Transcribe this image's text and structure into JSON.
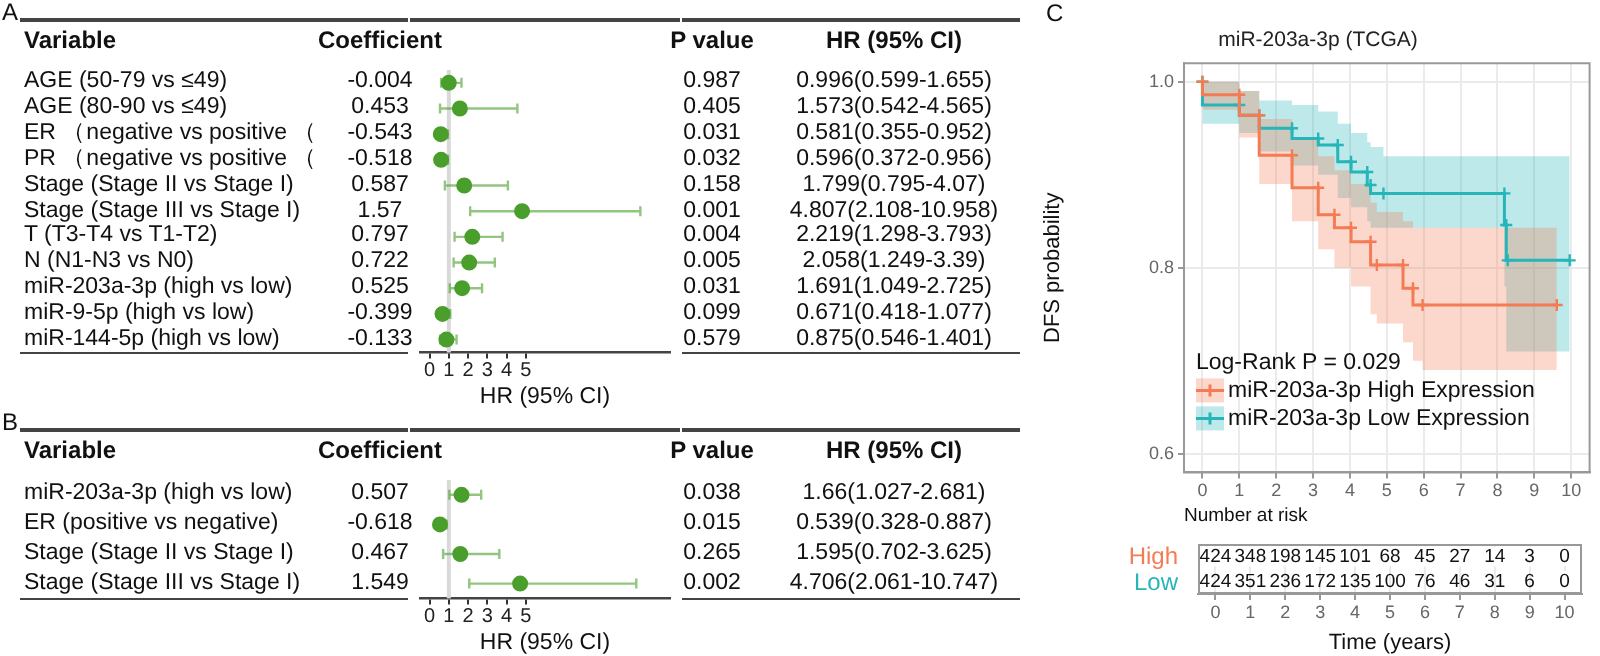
{
  "chart_data": [
    {
      "type": "scatter",
      "orientation": "horizontal",
      "title": "A",
      "xlabel": "HR (95% CI)",
      "marker": "circle",
      "categories": [
        "AGE (50-79 vs ≤49)",
        "AGE (80-90 vs ≤49)",
        "ER （negative vs positive （",
        "PR （negative vs positive （",
        "Stage (Stage II vs Stage I)",
        "Stage (Stage III vs Stage I)",
        "T (T3-T4 vs T1-T2)",
        "N (N1-N3 vs N0)",
        "miR-203a-3p (high vs low)",
        "miR-9-5p (high vs low)",
        "miR-144-5p (high vs low)"
      ],
      "series": [
        {
          "color": "#4a9e2c",
          "values": [
            0.996,
            1.573,
            0.581,
            0.596,
            1.799,
            4.807,
            2.219,
            2.058,
            1.691,
            0.671,
            0.875
          ],
          "errors": [
            [
              0.599,
              1.655
            ],
            [
              0.542,
              4.565
            ],
            [
              0.355,
              0.952
            ],
            [
              0.372,
              0.956
            ],
            [
              0.795,
              4.07
            ],
            [
              2.108,
              10.958
            ],
            [
              1.298,
              3.793
            ],
            [
              1.249,
              3.39
            ],
            [
              1.049,
              2.725
            ],
            [
              0.418,
              1.077
            ],
            [
              0.546,
              1.401
            ]
          ],
          "value_labels": [
            "0.996(0.599-1.655)",
            "1.573(0.542-4.565)",
            "0.581(0.355-0.952)",
            "0.596(0.372-0.956)",
            "1.799(0.795-4.07)",
            "4.807(2.108-10.958)",
            "2.219(1.298-3.793)",
            "2.058(1.249-3.39)",
            "1.691(1.049-2.725)",
            "0.671(0.418-1.077)",
            "0.875(0.546-1.401)"
          ]
        }
      ],
      "xlim": [
        -0.5,
        12.5
      ],
      "xticks": [
        0,
        1,
        2,
        3,
        4,
        5
      ],
      "ref_lines": [
        {
          "axis": "x",
          "value": 1,
          "color": "#d9d9d9"
        }
      ],
      "annotations": [
        "Variable",
        "Coefficient",
        "P value",
        "HR (95% CI)",
        "-0.004",
        "0.987",
        "0.453",
        "0.405",
        "-0.543",
        "0.031",
        "-0.518",
        "0.032",
        "0.587",
        "0.158",
        "1.57",
        "0.001",
        "0.797",
        "0.004",
        "0.722",
        "0.005",
        "0.525",
        "0.031",
        "-0.399",
        "0.099",
        "-0.133",
        "0.579"
      ]
    },
    {
      "type": "scatter",
      "orientation": "horizontal",
      "title": "B",
      "xlabel": "HR (95% CI)",
      "marker": "circle",
      "categories": [
        "miR-203a-3p (high vs low)",
        "ER (positive vs negative)",
        "Stage (Stage II vs Stage I)",
        "Stage (Stage III vs Stage I)"
      ],
      "series": [
        {
          "color": "#4a9e2c",
          "values": [
            1.66,
            0.539,
            1.595,
            4.706
          ],
          "errors": [
            [
              1.027,
              2.681
            ],
            [
              0.328,
              0.887
            ],
            [
              0.702,
              3.625
            ],
            [
              2.061,
              10.747
            ]
          ],
          "value_labels": [
            "1.66(1.027-2.681)",
            "0.539(0.328-0.887)",
            "1.595(0.702-3.625)",
            "4.706(2.061-10.747)"
          ]
        }
      ],
      "xlim": [
        -0.5,
        12.5
      ],
      "xticks": [
        0,
        1,
        2,
        3,
        4,
        5
      ],
      "ref_lines": [
        {
          "axis": "x",
          "value": 1,
          "color": "#d9d9d9"
        }
      ],
      "annotations": [
        "Variable",
        "Coefficient",
        "P value",
        "HR (95% CI)",
        "0.507",
        "0.038",
        "-0.618",
        "0.015",
        "0.467",
        "0.265",
        "1.549",
        "0.002"
      ]
    },
    {
      "type": "step",
      "title": "miR-203a-3p (TCGA)",
      "ylabel": "DFS probability",
      "legend_title": "Log-Rank P = 0.029",
      "legend": "bottom left",
      "grid": true,
      "marker": "cross",
      "annotations": [
        "C"
      ],
      "xlim": [
        -0.5,
        10.5
      ],
      "xticks": [
        0,
        1,
        2,
        3,
        4,
        5,
        6,
        7,
        8,
        9,
        10
      ],
      "ylim": [
        0.58,
        1.02
      ],
      "yticks": [
        0.6,
        0.8,
        {
          "value": 1,
          "label": "1.0"
        }
      ],
      "series": [
        {
          "name": "miR-203a-3p High Expression",
          "color": "#f47c54",
          "x": [
            0,
            1.0,
            1.54,
            2.43,
            3.14,
            3.58,
            4.03,
            4.56,
            4.73,
            5.44,
            5.71,
            5.97,
            9.61
          ],
          "values": [
            1,
            0.986,
            0.964,
            0.921,
            0.886,
            0.857,
            0.843,
            0.828,
            0.803,
            0.803,
            0.778,
            0.76,
            0.76
          ],
          "upper": [
            1,
            1,
            0.99,
            0.96,
            0.94,
            0.92,
            0.905,
            0.89,
            0.87,
            0.86,
            0.85,
            0.843,
            0.843
          ],
          "lower": [
            1,
            0.97,
            0.94,
            0.89,
            0.85,
            0.82,
            0.8,
            0.78,
            0.75,
            0.74,
            0.72,
            0.7,
            0.69
          ]
        },
        {
          "name": "miR-203a-3p Low Expression",
          "color": "#26b5b8",
          "x": [
            0,
            1.0,
            1.54,
            2.43,
            3.14,
            3.67,
            4.03,
            4.47,
            4.56,
            4.91,
            8.19,
            8.24,
            8.28,
            9.96
          ],
          "values": [
            1,
            0.975,
            0.964,
            0.95,
            0.939,
            0.932,
            0.914,
            0.903,
            0.889,
            0.88,
            0.88,
            0.846,
            0.808,
            0.808
          ],
          "upper": [
            1,
            1,
            0.99,
            0.98,
            0.975,
            0.968,
            0.955,
            0.945,
            0.935,
            0.93,
            0.92,
            0.92,
            0.92,
            0.92
          ],
          "lower": [
            1,
            0.955,
            0.945,
            0.925,
            0.91,
            0.9,
            0.875,
            0.865,
            0.85,
            0.843,
            0.843,
            0.78,
            0.71,
            0.71
          ]
        }
      ]
    },
    {
      "type": "heatmap",
      "title": "Number at risk",
      "xlabel": "Time (years)",
      "grid": "x",
      "data_labels": true,
      "categories": [
        "0",
        "1",
        "2",
        "3",
        "4",
        "5",
        "6",
        "7",
        "8",
        "9",
        "10"
      ],
      "y_categories": [
        "High",
        "Low"
      ],
      "colors": [
        "#f47c54",
        "#26b5b8"
      ],
      "cells": [
        [
          424,
          348,
          198,
          145,
          101,
          68,
          45,
          27,
          14,
          3,
          0
        ],
        [
          424,
          351,
          236,
          172,
          135,
          100,
          76,
          46,
          31,
          6,
          0
        ]
      ]
    }
  ]
}
